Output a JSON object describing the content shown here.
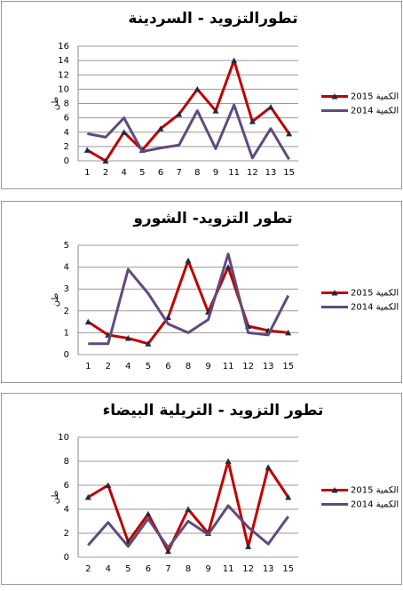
{
  "chart_data": [
    {
      "type": "line",
      "title": "تطورالتزويد - السردينة",
      "y_label": "طن",
      "categories": [
        "1",
        "2",
        "4",
        "5",
        "6",
        "7",
        "8",
        "9",
        "11",
        "12",
        "13",
        "15"
      ],
      "ylim": [
        0,
        16
      ],
      "yticks": [
        0,
        2,
        4,
        6,
        8,
        10,
        12,
        14,
        16
      ],
      "grid": true,
      "series": [
        {
          "name": "الكمية 2015",
          "color": "#c00000",
          "values": [
            1.5,
            0,
            4,
            1.5,
            4.5,
            6.5,
            10,
            7,
            14,
            5.5,
            7.5,
            3.8
          ]
        },
        {
          "name": "الكمية 2014",
          "color": "#604a7b",
          "values": [
            3.8,
            3.3,
            6,
            1.3,
            1.8,
            2.2,
            7,
            1.7,
            7.8,
            0.4,
            4.5,
            0.2
          ]
        }
      ]
    },
    {
      "type": "line",
      "title": "تطور التزويد- الشورو",
      "y_label": "طن",
      "categories": [
        "1",
        "2",
        "4",
        "5",
        "6",
        "8",
        "9",
        "11",
        "12",
        "13",
        "15"
      ],
      "ylim": [
        0,
        5
      ],
      "yticks": [
        0,
        1,
        2,
        3,
        4,
        5
      ],
      "grid": true,
      "series": [
        {
          "name": "الكمية 2015",
          "color": "#c00000",
          "values": [
            1.5,
            0.9,
            0.75,
            0.5,
            1.7,
            4.3,
            1.95,
            4.0,
            1.3,
            1.1,
            1.0
          ]
        },
        {
          "name": "الكمية 2014",
          "color": "#604a7b",
          "values": [
            0.5,
            0.5,
            3.9,
            2.8,
            1.4,
            1.0,
            1.6,
            4.6,
            1.0,
            0.9,
            2.7
          ]
        }
      ]
    },
    {
      "type": "line",
      "title": "تطور التزويد - التريلية البيضاء",
      "y_label": "طن",
      "categories": [
        "2",
        "4",
        "5",
        "6",
        "7",
        "8",
        "9",
        "11",
        "12",
        "13",
        "15"
      ],
      "ylim": [
        0,
        10
      ],
      "yticks": [
        0,
        2,
        4,
        6,
        8,
        10
      ],
      "grid": true,
      "series": [
        {
          "name": "الكمية 2015",
          "color": "#c00000",
          "values": [
            5,
            6,
            1.3,
            3.6,
            0.5,
            4,
            2,
            8,
            0.9,
            7.5,
            5
          ]
        },
        {
          "name": "الكمية 2014",
          "color": "#604a7b",
          "values": [
            1,
            2.9,
            0.9,
            3.2,
            0.8,
            3,
            1.9,
            4.3,
            2.5,
            1.1,
            3.4
          ]
        }
      ]
    }
  ]
}
